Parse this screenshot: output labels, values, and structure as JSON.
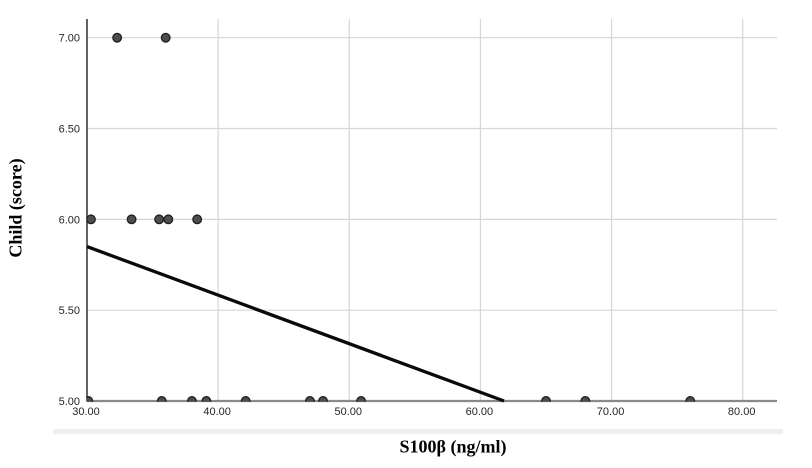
{
  "figure": {
    "background": "#ffffff"
  },
  "chart_data": {
    "type": "scatter",
    "title": "",
    "xlabel": "S100β (ng/ml)",
    "ylabel": "Child (score)",
    "xlim": [
      30,
      82.6
    ],
    "ylim": [
      5.0,
      7.1
    ],
    "grid": true,
    "legend": "none",
    "x_ticks": {
      "values": [
        30,
        40,
        50,
        60,
        70,
        80
      ],
      "labels": [
        "30.00",
        "40.00",
        "50.00",
        "60.00",
        "70.00",
        "80.00"
      ]
    },
    "y_ticks": {
      "values": [
        5.0,
        5.5,
        6.0,
        6.5,
        7.0
      ],
      "labels": [
        "5.00",
        "5.50",
        "6.00",
        "6.50",
        "7.00"
      ]
    },
    "series": [
      {
        "name": "observations",
        "type": "scatter",
        "points": [
          [
            32.3,
            7.0
          ],
          [
            36.0,
            7.0
          ],
          [
            30.3,
            6.0
          ],
          [
            33.4,
            6.0
          ],
          [
            35.5,
            6.0
          ],
          [
            36.2,
            6.0
          ],
          [
            38.4,
            6.0
          ],
          [
            30.1,
            5.0
          ],
          [
            35.7,
            5.0
          ],
          [
            38.0,
            5.0
          ],
          [
            39.1,
            5.0
          ],
          [
            42.1,
            5.0
          ],
          [
            47.0,
            5.0
          ],
          [
            48.0,
            5.0
          ],
          [
            50.9,
            5.0
          ],
          [
            65.0,
            5.0
          ],
          [
            68.0,
            5.0
          ],
          [
            76.0,
            5.0
          ]
        ]
      },
      {
        "name": "fit-line",
        "type": "line",
        "points": [
          [
            30.0,
            5.85
          ],
          [
            61.8,
            5.0
          ]
        ]
      }
    ],
    "colors": {
      "point_fill": "#4d4d4d",
      "point_stroke": "#1f1f1f",
      "fit_line": "#0a0a0a",
      "grid": "#d6d6d6",
      "x_axis": "#8a8a8a",
      "y_axis": "#3d3d3d",
      "tick_text": "#262626",
      "title_text": "#000000"
    }
  }
}
